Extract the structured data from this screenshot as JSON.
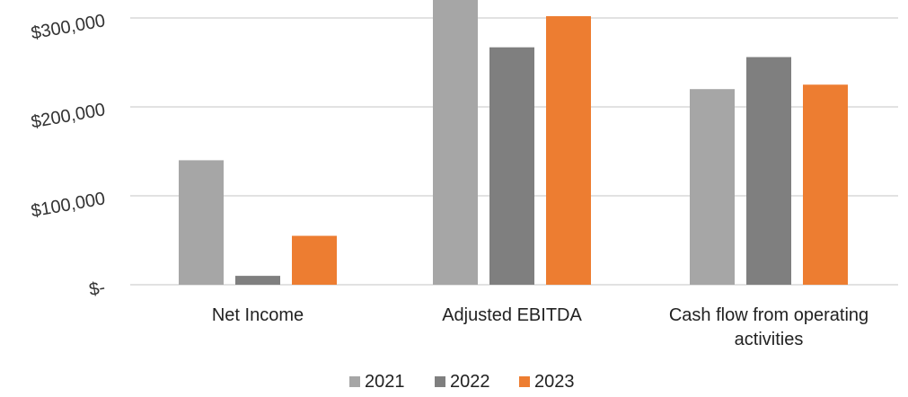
{
  "chart_data": {
    "type": "bar",
    "title": "",
    "xlabel": "",
    "ylabel": "",
    "categories": [
      [
        "Net Income"
      ],
      [
        "Adjusted EBITDA"
      ],
      [
        "Cash flow from operating",
        "activities"
      ]
    ],
    "series": [
      {
        "name": "2021",
        "color": "#a6a6a6",
        "values": [
          140000,
          335000,
          220000
        ]
      },
      {
        "name": "2022",
        "color": "#7f7f7f",
        "values": [
          10000,
          267000,
          256000
        ]
      },
      {
        "name": "2023",
        "color": "#ed7d31",
        "values": [
          55000,
          302000,
          225000
        ]
      }
    ],
    "ylim": [
      0,
      320000
    ],
    "yticks": [
      0,
      100000,
      200000,
      300000
    ],
    "ytick_labels": [
      "$-",
      "$100,000",
      "$200,000",
      "$300,000"
    ],
    "grid": true,
    "legend_position": "bottom",
    "gridline_color": "#d9d9d9"
  }
}
